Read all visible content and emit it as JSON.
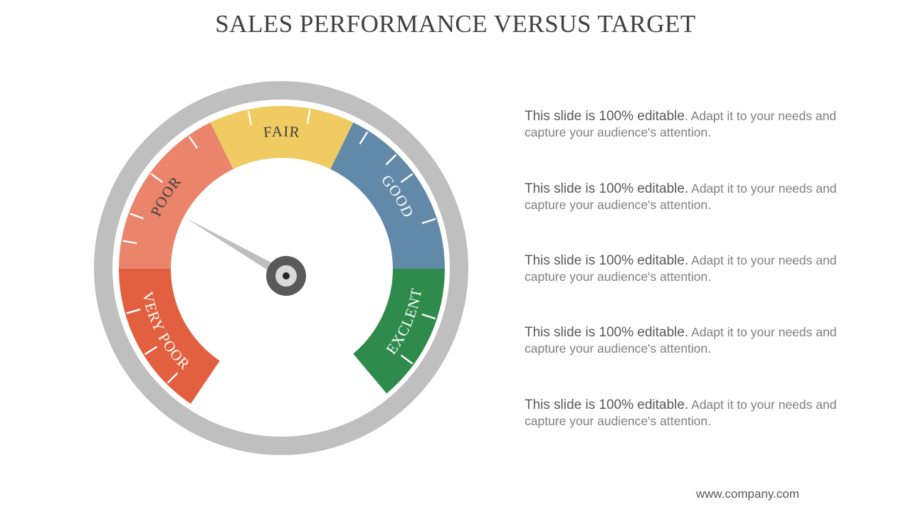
{
  "title": "SALES PERFORMANCE VERSUS TARGET",
  "gauge": {
    "level": "POOR",
    "colors": {
      "ring": "#bfbfbf",
      "hub_outer": "#595959",
      "hub_inner": "#d9d9d9",
      "needle": "#bfbfbf"
    },
    "segments": [
      {
        "label": "VERY POOR",
        "color": "#e2603f"
      },
      {
        "label": "POOR",
        "color": "#ea846b"
      },
      {
        "label": "FAIR",
        "color": "#efcb62"
      },
      {
        "label": "GOOD",
        "color": "#628aa8"
      },
      {
        "label": "EXCLENT",
        "color": "#2e8b4b"
      }
    ]
  },
  "notes": [
    {
      "lead": "This slide is 100% editable",
      "rest": ". Adapt it to your needs and capture your audience's attention."
    },
    {
      "lead": "This slide is 100% editable.",
      "rest": " Adapt it to your needs and capture your audience's attention."
    },
    {
      "lead": "This slide is 100% editable.",
      "rest": " Adapt it to your needs and capture your audience's attention."
    },
    {
      "lead": "This slide is 100% editable.",
      "rest": " Adapt it to your needs and capture your audience's attention."
    },
    {
      "lead": "This slide is 100% editable.",
      "rest": " Adapt it to your needs and capture your audience's attention."
    }
  ],
  "footer": "www.company.com"
}
